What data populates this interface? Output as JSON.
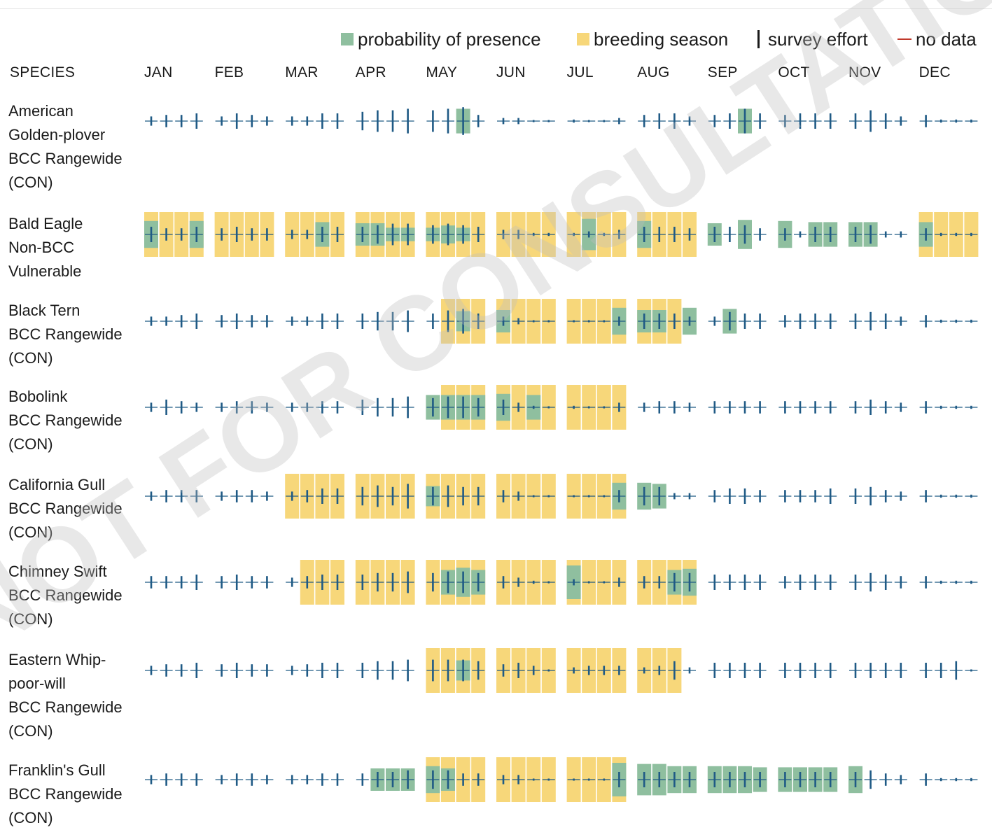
{
  "legend": {
    "presence": "probability of presence",
    "breeding": "breeding season",
    "effort": "survey effort",
    "nodata": "no data"
  },
  "header": {
    "species": "SPECIES",
    "months": [
      "JAN",
      "FEB",
      "MAR",
      "APR",
      "MAY",
      "JUN",
      "JUL",
      "AUG",
      "SEP",
      "OCT",
      "NOV",
      "DEC"
    ]
  },
  "colors": {
    "presence": "#8fbf9f",
    "breeding": "#f7d77a",
    "effort": "#1f5a85",
    "baseline": "#1f5a85",
    "nodata": "#c0392b",
    "watermark": "#bdbdbd"
  },
  "watermark": "NOT FOR CONSULTATION",
  "species": [
    {
      "lines": [
        "American",
        "Golden-plover",
        "BCC Rangewide",
        "(CON)"
      ]
    },
    {
      "lines": [
        "Bald Eagle",
        "Non-BCC",
        "Vulnerable"
      ]
    },
    {
      "lines": [
        "Black Tern",
        "BCC Rangewide",
        "(CON)"
      ]
    },
    {
      "lines": [
        "Bobolink",
        "BCC Rangewide",
        "(CON)"
      ]
    },
    {
      "lines": [
        "California Gull",
        "BCC Rangewide",
        "(CON)"
      ]
    },
    {
      "lines": [
        "Chimney Swift",
        "BCC Rangewide",
        "(CON)"
      ]
    },
    {
      "lines": [
        "Eastern Whip-",
        "poor-will",
        "BCC Rangewide",
        "(CON)"
      ]
    },
    {
      "lines": [
        "Franklin's Gull",
        "BCC Rangewide",
        "(CON)"
      ]
    }
  ],
  "chart_data": {
    "type": "heatmap",
    "description_note": "48 weekly slots (4 per month). presence = probability of presence (0-1); breeding = 1 if week in breeding season; effort = survey effort level (0-1).",
    "series": [
      {
        "species": "American Golden-plover BCC Rangewide (CON)",
        "presence": [
          0,
          0,
          0,
          0,
          0,
          0,
          0,
          0,
          0,
          0,
          0,
          0,
          0,
          0,
          0,
          0,
          0,
          0,
          0.55,
          0,
          0,
          0,
          0,
          0,
          0,
          0,
          0,
          0,
          0,
          0,
          0,
          0,
          0,
          0,
          0.55,
          0,
          0,
          0,
          0,
          0,
          0,
          0,
          0,
          0,
          0,
          0,
          0,
          0
        ],
        "breeding": [
          0,
          0,
          0,
          0,
          0,
          0,
          0,
          0,
          0,
          0,
          0,
          0,
          0,
          0,
          0,
          0,
          0,
          0,
          0,
          0,
          0,
          0,
          0,
          0,
          0,
          0,
          0,
          0,
          0,
          0,
          0,
          0,
          0,
          0,
          0,
          0,
          0,
          0,
          0,
          0,
          0,
          0,
          0,
          0,
          0,
          0,
          0,
          0
        ],
        "effort": [
          0.3,
          0.4,
          0.4,
          0.5,
          0.3,
          0.5,
          0.4,
          0.3,
          0.3,
          0.3,
          0.5,
          0.5,
          0.6,
          0.7,
          0.7,
          0.8,
          0.7,
          0.8,
          0.9,
          0.4,
          0.2,
          0.2,
          0.05,
          0.05,
          0.1,
          0.05,
          0.05,
          0.2,
          0.4,
          0.5,
          0.5,
          0.3,
          0.4,
          0.5,
          0.8,
          0.5,
          0.4,
          0.5,
          0.5,
          0.5,
          0.5,
          0.7,
          0.5,
          0.3,
          0.4,
          0.1,
          0.1,
          0.1
        ]
      },
      {
        "species": "Bald Eagle Non-BCC Vulnerable",
        "presence": [
          0.6,
          0,
          0,
          0.6,
          0,
          0,
          0,
          0,
          0,
          0,
          0.55,
          0,
          0.5,
          0.5,
          0.3,
          0.3,
          0.3,
          0.4,
          0.3,
          0,
          0,
          0,
          0,
          0,
          0,
          0.7,
          0,
          0,
          0.6,
          0,
          0,
          0,
          0.5,
          0,
          0.65,
          0,
          0.6,
          0,
          0.55,
          0.55,
          0.55,
          0.55,
          0,
          0,
          0.55,
          0,
          0,
          0
        ],
        "breeding": [
          1,
          1,
          1,
          1,
          1,
          1,
          1,
          1,
          1,
          1,
          1,
          1,
          1,
          1,
          1,
          1,
          1,
          1,
          1,
          1,
          1,
          1,
          1,
          1,
          1,
          1,
          1,
          1,
          1,
          1,
          1,
          1,
          0,
          0,
          0,
          0,
          0,
          0,
          0,
          0,
          0,
          0,
          0,
          0,
          1,
          1,
          1,
          1
        ],
        "effort": [
          0.5,
          0.4,
          0.4,
          0.5,
          0.4,
          0.5,
          0.4,
          0.4,
          0.3,
          0.3,
          0.5,
          0.5,
          0.5,
          0.6,
          0.7,
          0.7,
          0.6,
          0.7,
          0.6,
          0.5,
          0.3,
          0.3,
          0.1,
          0.1,
          0.1,
          0.2,
          0.1,
          0.3,
          0.5,
          0.5,
          0.5,
          0.4,
          0.5,
          0.5,
          0.6,
          0.4,
          0.4,
          0.2,
          0.5,
          0.5,
          0.5,
          0.6,
          0.2,
          0.2,
          0.4,
          0.1,
          0.1,
          0.1
        ]
      },
      {
        "species": "Black Tern BCC Rangewide (CON)",
        "presence": [
          0,
          0,
          0,
          0,
          0,
          0,
          0,
          0,
          0,
          0,
          0,
          0,
          0,
          0,
          0,
          0,
          0,
          0,
          0.45,
          0,
          0.5,
          0,
          0,
          0,
          0,
          0,
          0,
          0.6,
          0.5,
          0.5,
          0,
          0.6,
          0,
          0.55,
          0,
          0,
          0,
          0,
          0,
          0,
          0,
          0,
          0,
          0,
          0,
          0,
          0,
          0
        ],
        "breeding": [
          0,
          0,
          0,
          0,
          0,
          0,
          0,
          0,
          0,
          0,
          0,
          0,
          0,
          0,
          0,
          0,
          0,
          1,
          1,
          1,
          1,
          1,
          1,
          1,
          1,
          1,
          1,
          1,
          1,
          1,
          1,
          0,
          0,
          0,
          0,
          0,
          0,
          0,
          0,
          0,
          0,
          0,
          0,
          0,
          0,
          0,
          0,
          0
        ],
        "effort": [
          0.3,
          0.3,
          0.4,
          0.5,
          0.4,
          0.5,
          0.4,
          0.4,
          0.3,
          0.3,
          0.5,
          0.5,
          0.5,
          0.6,
          0.6,
          0.7,
          0.5,
          0.7,
          0.8,
          0.5,
          0.3,
          0.2,
          0.05,
          0.05,
          0.05,
          0.05,
          0.05,
          0.3,
          0.5,
          0.5,
          0.5,
          0.3,
          0.3,
          0.6,
          0.5,
          0.5,
          0.4,
          0.5,
          0.5,
          0.5,
          0.5,
          0.6,
          0.5,
          0.3,
          0.4,
          0.1,
          0.1,
          0.1
        ]
      },
      {
        "species": "Bobolink BCC Rangewide (CON)",
        "presence": [
          0,
          0,
          0,
          0,
          0,
          0,
          0,
          0,
          0,
          0,
          0,
          0,
          0,
          0,
          0,
          0,
          0.55,
          0.55,
          0.55,
          0.55,
          0.6,
          0,
          0.55,
          0,
          0,
          0,
          0,
          0,
          0,
          0,
          0,
          0,
          0,
          0,
          0,
          0,
          0,
          0,
          0,
          0,
          0,
          0,
          0,
          0,
          0,
          0,
          0,
          0
        ],
        "breeding": [
          0,
          0,
          0,
          0,
          0,
          0,
          0,
          0,
          0,
          0,
          0,
          0,
          0,
          0,
          0,
          0,
          0,
          1,
          1,
          1,
          1,
          1,
          1,
          1,
          1,
          1,
          1,
          1,
          0,
          0,
          0,
          0,
          0,
          0,
          0,
          0,
          0,
          0,
          0,
          0,
          0,
          0,
          0,
          0,
          0,
          0,
          0,
          0
        ],
        "effort": [
          0.3,
          0.5,
          0.4,
          0.3,
          0.3,
          0.4,
          0.4,
          0.3,
          0.3,
          0.3,
          0.4,
          0.4,
          0.5,
          0.6,
          0.6,
          0.7,
          0.6,
          0.7,
          0.7,
          0.6,
          0.5,
          0.3,
          0.1,
          0.05,
          0.1,
          0.05,
          0.05,
          0.3,
          0.3,
          0.4,
          0.4,
          0.3,
          0.4,
          0.4,
          0.4,
          0.4,
          0.4,
          0.4,
          0.4,
          0.4,
          0.4,
          0.5,
          0.4,
          0.3,
          0.4,
          0.1,
          0.1,
          0.1
        ]
      },
      {
        "species": "California Gull BCC Rangewide (CON)",
        "presence": [
          0,
          0,
          0,
          0,
          0,
          0,
          0,
          0,
          0,
          0,
          0,
          0,
          0,
          0,
          0,
          0,
          0.45,
          0,
          0,
          0,
          0,
          0,
          0,
          0,
          0,
          0,
          0,
          0.6,
          0.6,
          0.55,
          0,
          0,
          0,
          0,
          0,
          0,
          0,
          0,
          0,
          0,
          0,
          0,
          0,
          0,
          0,
          0,
          0,
          0
        ],
        "breeding": [
          0,
          0,
          0,
          0,
          0,
          0,
          0,
          0,
          1,
          1,
          1,
          1,
          1,
          1,
          1,
          1,
          1,
          1,
          1,
          1,
          1,
          1,
          1,
          1,
          1,
          1,
          1,
          1,
          0,
          0,
          0,
          0,
          0,
          0,
          0,
          0,
          0,
          0,
          0,
          0,
          0,
          0,
          0,
          0,
          0,
          0,
          0,
          0
        ],
        "effort": [
          0.3,
          0.4,
          0.4,
          0.4,
          0.3,
          0.4,
          0.4,
          0.3,
          0.3,
          0.4,
          0.5,
          0.5,
          0.6,
          0.7,
          0.6,
          0.8,
          0.6,
          0.7,
          0.6,
          0.6,
          0.4,
          0.3,
          0.05,
          0.05,
          0.05,
          0.05,
          0.05,
          0.4,
          0.6,
          0.6,
          0.2,
          0.2,
          0.4,
          0.5,
          0.5,
          0.4,
          0.4,
          0.4,
          0.4,
          0.5,
          0.5,
          0.6,
          0.4,
          0.3,
          0.4,
          0.1,
          0.1,
          0.1
        ]
      },
      {
        "species": "Chimney Swift BCC Rangewide (CON)",
        "presence": [
          0,
          0,
          0,
          0,
          0,
          0,
          0,
          0,
          0,
          0,
          0,
          0,
          0,
          0,
          0,
          0,
          0,
          0.55,
          0.65,
          0.55,
          0,
          0,
          0,
          0,
          0.75,
          0,
          0,
          0,
          0,
          0,
          0.55,
          0.6,
          0,
          0,
          0,
          0,
          0,
          0,
          0,
          0,
          0,
          0,
          0,
          0,
          0,
          0,
          0,
          0
        ],
        "breeding": [
          0,
          0,
          0,
          0,
          0,
          0,
          0,
          0,
          0,
          1,
          1,
          1,
          1,
          1,
          1,
          1,
          1,
          1,
          1,
          1,
          1,
          1,
          1,
          1,
          1,
          1,
          1,
          1,
          1,
          1,
          1,
          1,
          0,
          0,
          0,
          0,
          0,
          0,
          0,
          0,
          0,
          0,
          0,
          0,
          0,
          0,
          0,
          0
        ],
        "effort": [
          0.4,
          0.4,
          0.4,
          0.5,
          0.4,
          0.5,
          0.4,
          0.4,
          0.3,
          0.4,
          0.5,
          0.5,
          0.5,
          0.6,
          0.6,
          0.7,
          0.6,
          0.7,
          0.7,
          0.6,
          0.4,
          0.3,
          0.1,
          0.05,
          0.2,
          0.05,
          0.05,
          0.3,
          0.4,
          0.4,
          0.6,
          0.6,
          0.5,
          0.5,
          0.5,
          0.5,
          0.4,
          0.5,
          0.5,
          0.5,
          0.5,
          0.6,
          0.5,
          0.4,
          0.4,
          0.1,
          0.1,
          0.1
        ]
      },
      {
        "species": "Eastern Whip-poor-will BCC Rangewide (CON)",
        "presence": [
          0,
          0,
          0,
          0,
          0,
          0,
          0,
          0,
          0,
          0,
          0,
          0,
          0,
          0,
          0,
          0,
          0,
          0,
          0.45,
          0,
          0,
          0,
          0,
          0,
          0,
          0,
          0,
          0,
          0,
          0,
          0,
          0,
          0,
          0,
          0,
          0,
          0,
          0,
          0,
          0,
          0,
          0,
          0,
          0,
          0,
          0,
          0,
          0
        ],
        "breeding": [
          0,
          0,
          0,
          0,
          0,
          0,
          0,
          0,
          0,
          0,
          0,
          0,
          0,
          0,
          0,
          0,
          1,
          1,
          1,
          1,
          1,
          1,
          1,
          1,
          1,
          1,
          1,
          1,
          1,
          1,
          1,
          0,
          0,
          0,
          0,
          0,
          0,
          0,
          0,
          0,
          0,
          0,
          0,
          0,
          0,
          0,
          0,
          0
        ],
        "effort": [
          0.3,
          0.4,
          0.4,
          0.5,
          0.4,
          0.5,
          0.4,
          0.4,
          0.3,
          0.4,
          0.5,
          0.5,
          0.5,
          0.6,
          0.6,
          0.7,
          0.7,
          0.7,
          0.7,
          0.6,
          0.4,
          0.5,
          0.3,
          0.05,
          0.2,
          0.3,
          0.3,
          0.3,
          0.2,
          0.3,
          0.6,
          0.2,
          0.5,
          0.5,
          0.5,
          0.5,
          0.5,
          0.5,
          0.5,
          0.5,
          0.5,
          0.5,
          0.5,
          0.5,
          0.5,
          0.5,
          0.6,
          0.05
        ]
      },
      {
        "species": "Franklin's Gull BCC Rangewide (CON)",
        "presence": [
          0,
          0,
          0,
          0,
          0,
          0,
          0,
          0,
          0,
          0,
          0,
          0,
          0,
          0.5,
          0.5,
          0.5,
          0.6,
          0.5,
          0,
          0,
          0,
          0,
          0,
          0,
          0,
          0,
          0,
          0.75,
          0.7,
          0.7,
          0.6,
          0.6,
          0.6,
          0.6,
          0.6,
          0.55,
          0.55,
          0.55,
          0.55,
          0.55,
          0.6,
          0,
          0,
          0,
          0,
          0,
          0,
          0
        ],
        "breeding": [
          0,
          0,
          0,
          0,
          0,
          0,
          0,
          0,
          0,
          0,
          0,
          0,
          0,
          0,
          0,
          0,
          1,
          1,
          1,
          1,
          1,
          1,
          1,
          1,
          1,
          1,
          1,
          1,
          0,
          0,
          0,
          0,
          0,
          0,
          0,
          0,
          0,
          0,
          0,
          0,
          0,
          0,
          0,
          0,
          0,
          0,
          0,
          0
        ],
        "effort": [
          0.3,
          0.4,
          0.4,
          0.4,
          0.3,
          0.4,
          0.4,
          0.3,
          0.3,
          0.3,
          0.4,
          0.4,
          0.4,
          0.5,
          0.5,
          0.6,
          0.6,
          0.6,
          0.4,
          0.4,
          0.3,
          0.3,
          0.05,
          0.05,
          0.05,
          0.05,
          0.05,
          0.5,
          0.5,
          0.5,
          0.5,
          0.5,
          0.5,
          0.5,
          0.5,
          0.5,
          0.5,
          0.5,
          0.5,
          0.5,
          0.5,
          0.6,
          0.4,
          0.3,
          0.4,
          0.1,
          0.1,
          0.1
        ]
      }
    ]
  }
}
